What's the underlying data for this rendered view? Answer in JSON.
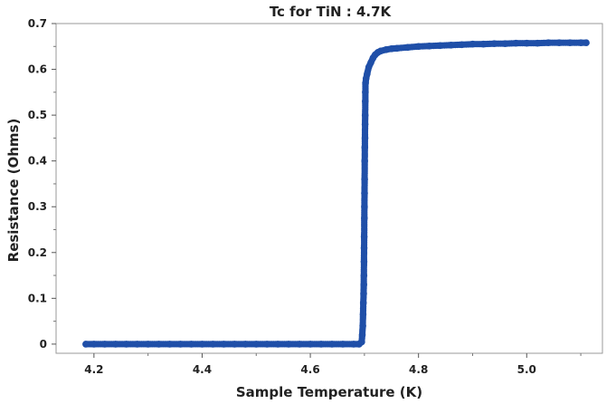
{
  "chart_data": {
    "type": "scatter",
    "title": "Tc for TiN : 4.7K",
    "xlabel": "Sample Temperature (K)",
    "ylabel": "Resistance (Ohms)",
    "xlim": [
      4.13,
      5.14
    ],
    "ylim": [
      -0.02,
      0.7
    ],
    "xticks": [
      "4.2",
      "4.4",
      "4.6",
      "4.8",
      "5.0"
    ],
    "yticks": [
      "0",
      "0.1",
      "0.2",
      "0.3",
      "0.4",
      "0.5",
      "0.6",
      "0.7"
    ],
    "grid": false,
    "legend": "none",
    "marker_color": "#1f4fa8",
    "line_color": "#3b63b5",
    "series": [
      {
        "values": [
          [
            4.185,
            0.0
          ],
          [
            4.2,
            0.0
          ],
          [
            4.22,
            0.0
          ],
          [
            4.24,
            0.0
          ],
          [
            4.26,
            0.0
          ],
          [
            4.28,
            0.0
          ],
          [
            4.3,
            0.0
          ],
          [
            4.32,
            0.0
          ],
          [
            4.34,
            0.0
          ],
          [
            4.36,
            0.0
          ],
          [
            4.38,
            0.0
          ],
          [
            4.4,
            0.0
          ],
          [
            4.42,
            0.0
          ],
          [
            4.44,
            0.0
          ],
          [
            4.46,
            0.0
          ],
          [
            4.48,
            0.0
          ],
          [
            4.5,
            0.0
          ],
          [
            4.52,
            0.0
          ],
          [
            4.54,
            0.0
          ],
          [
            4.56,
            0.0
          ],
          [
            4.58,
            0.0
          ],
          [
            4.6,
            0.0
          ],
          [
            4.62,
            0.0
          ],
          [
            4.64,
            0.0
          ],
          [
            4.66,
            0.0
          ],
          [
            4.68,
            0.0
          ],
          [
            4.69,
            0.0
          ],
          [
            4.695,
            0.005
          ],
          [
            4.696,
            0.02
          ],
          [
            4.697,
            0.04
          ],
          [
            4.6975,
            0.065
          ],
          [
            4.698,
            0.09
          ],
          [
            4.6985,
            0.11
          ],
          [
            4.6988,
            0.13
          ],
          [
            4.699,
            0.15
          ],
          [
            4.6992,
            0.18
          ],
          [
            4.6994,
            0.21
          ],
          [
            4.6996,
            0.235
          ],
          [
            4.6998,
            0.275
          ],
          [
            4.7,
            0.3
          ],
          [
            4.7002,
            0.33
          ],
          [
            4.7004,
            0.36
          ],
          [
            4.7006,
            0.4
          ],
          [
            4.7008,
            0.43
          ],
          [
            4.701,
            0.45
          ],
          [
            4.7012,
            0.48
          ],
          [
            4.7014,
            0.5
          ],
          [
            4.7016,
            0.53
          ],
          [
            4.7018,
            0.55
          ],
          [
            4.702,
            0.57
          ],
          [
            4.703,
            0.58
          ],
          [
            4.705,
            0.59
          ],
          [
            4.708,
            0.605
          ],
          [
            4.712,
            0.615
          ],
          [
            4.716,
            0.625
          ],
          [
            4.72,
            0.632
          ],
          [
            4.725,
            0.637
          ],
          [
            4.73,
            0.64
          ],
          [
            4.74,
            0.643
          ],
          [
            4.75,
            0.645
          ],
          [
            4.76,
            0.646
          ],
          [
            4.78,
            0.648
          ],
          [
            4.8,
            0.65
          ],
          [
            4.82,
            0.651
          ],
          [
            4.84,
            0.652
          ],
          [
            4.86,
            0.653
          ],
          [
            4.88,
            0.654
          ],
          [
            4.9,
            0.655
          ],
          [
            4.92,
            0.655
          ],
          [
            4.94,
            0.656
          ],
          [
            4.96,
            0.656
          ],
          [
            4.98,
            0.657
          ],
          [
            5.0,
            0.657
          ],
          [
            5.02,
            0.657
          ],
          [
            5.04,
            0.658
          ],
          [
            5.06,
            0.658
          ],
          [
            5.08,
            0.658
          ],
          [
            5.1,
            0.658
          ],
          [
            5.11,
            0.658
          ]
        ]
      }
    ]
  }
}
